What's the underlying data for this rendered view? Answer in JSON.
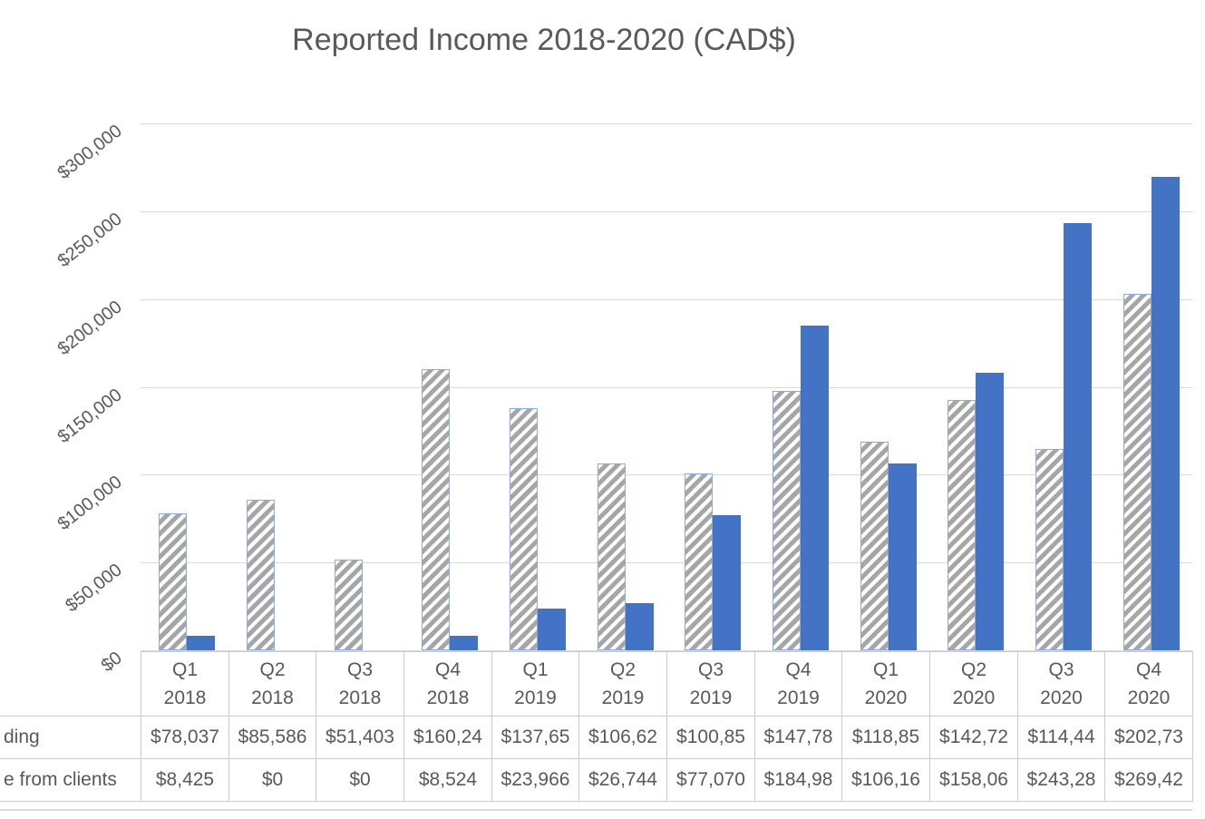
{
  "chart_data": {
    "type": "bar",
    "title": "Reported Income 2018-2020 (CAD$)",
    "categories": [
      "Q1 2018",
      "Q2 2018",
      "Q3 2018",
      "Q4 2018",
      "Q1 2019",
      "Q2 2019",
      "Q3 2019",
      "Q4 2019",
      "Q1 2020",
      "Q2 2020",
      "Q3 2020",
      "Q4 2020"
    ],
    "series": [
      {
        "name": "ding",
        "style": "hatched",
        "values": [
          78037,
          85586,
          51403,
          160240,
          137650,
          106620,
          100850,
          147780,
          118850,
          142720,
          114440,
          202730
        ],
        "table_labels": [
          "$78,037",
          "$85,586",
          "$51,403",
          "$160,24",
          "$137,65",
          "$106,62",
          "$100,85",
          "$147,78",
          "$118,85",
          "$142,72",
          "$114,44",
          "$202,73"
        ]
      },
      {
        "name": "e from clients",
        "style": "solid",
        "values": [
          8425,
          0,
          0,
          8524,
          23966,
          26744,
          77070,
          184980,
          106160,
          158060,
          243280,
          269420
        ],
        "table_labels": [
          "$8,425",
          "$0",
          "$0",
          "$8,524",
          "$23,966",
          "$26,744",
          "$77,070",
          "$184,98",
          "$106,16",
          "$158,06",
          "$243,28",
          "$269,42"
        ]
      }
    ],
    "y_axis": {
      "tick_labels": [
        "$300,000",
        "$250,000",
        "$200,000",
        "$150,000",
        "$100,000",
        "$50,000",
        "$0"
      ],
      "tick_values": [
        300000,
        250000,
        200000,
        150000,
        100000,
        50000,
        0
      ]
    },
    "ylim": [
      0,
      300000
    ],
    "grid": true,
    "legend_position": "data-table-left-cropped"
  },
  "colors": {
    "solid_bar": "#4472c4",
    "hatch_stripe": "#a6a6a6",
    "hatch_border": "#8faadc",
    "gridline": "#d9d9d9",
    "table_border": "#cbcbcb",
    "text": "#595959"
  }
}
